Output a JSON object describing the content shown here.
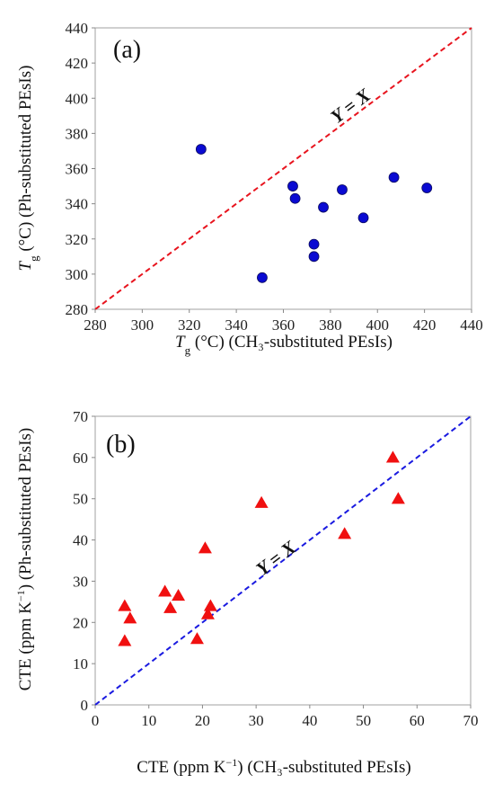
{
  "chart_data": [
    {
      "type": "scatter",
      "panel_label": "(a)",
      "xlabel_sym": "T",
      "xlabel_sub": "g",
      "xlabel_rest": " (°C) (CH₃-substituted PEsIs)",
      "ylabel_sym": "T",
      "ylabel_sub": "g",
      "ylabel_rest": " (°C) (Ph-substituted PEsIs)",
      "xlim": [
        280,
        440
      ],
      "ylim": [
        280,
        440
      ],
      "xticks": [
        280,
        300,
        320,
        340,
        360,
        380,
        400,
        420,
        440
      ],
      "yticks": [
        280,
        300,
        320,
        340,
        360,
        380,
        400,
        420,
        440
      ],
      "grid": false,
      "marker": "circle",
      "marker_color": "#0a0ad2",
      "reference_line": {
        "label": "Y = X",
        "color": "#e8141e",
        "style": "dashed"
      },
      "points": [
        {
          "x": 325,
          "y": 371
        },
        {
          "x": 351,
          "y": 298
        },
        {
          "x": 364,
          "y": 350
        },
        {
          "x": 365,
          "y": 343
        },
        {
          "x": 373,
          "y": 317
        },
        {
          "x": 373,
          "y": 310
        },
        {
          "x": 377,
          "y": 338
        },
        {
          "x": 385,
          "y": 348
        },
        {
          "x": 394,
          "y": 332
        },
        {
          "x": 407,
          "y": 355
        },
        {
          "x": 421,
          "y": 349
        }
      ]
    },
    {
      "type": "scatter",
      "panel_label": "(b)",
      "xlabel_main": "CTE (ppm K",
      "xlabel_sup": "−1",
      "xlabel_rest": ") (CH₃-substituted PEsIs)",
      "ylabel_main": "CTE (ppm K",
      "ylabel_sup": "−1",
      "ylabel_rest": ") (Ph-substituted PEsIs)",
      "xlim": [
        0,
        70
      ],
      "ylim": [
        0,
        70
      ],
      "xticks": [
        0,
        10,
        20,
        30,
        40,
        50,
        60,
        70
      ],
      "yticks": [
        0,
        10,
        20,
        30,
        40,
        50,
        60,
        70
      ],
      "grid": false,
      "marker": "triangle",
      "marker_color": "#f01010",
      "reference_line": {
        "label": "Y = X",
        "color": "#1a1ae0",
        "style": "dashed"
      },
      "points": [
        {
          "x": 5.5,
          "y": 24
        },
        {
          "x": 5.5,
          "y": 15.5
        },
        {
          "x": 6.5,
          "y": 21
        },
        {
          "x": 13,
          "y": 27.5
        },
        {
          "x": 14,
          "y": 23.5
        },
        {
          "x": 15.5,
          "y": 26.5
        },
        {
          "x": 19,
          "y": 16
        },
        {
          "x": 20.5,
          "y": 38
        },
        {
          "x": 21,
          "y": 22
        },
        {
          "x": 21.5,
          "y": 24
        },
        {
          "x": 31,
          "y": 49
        },
        {
          "x": 46.5,
          "y": 41.5
        },
        {
          "x": 55.5,
          "y": 60
        },
        {
          "x": 56.5,
          "y": 50
        }
      ]
    }
  ]
}
